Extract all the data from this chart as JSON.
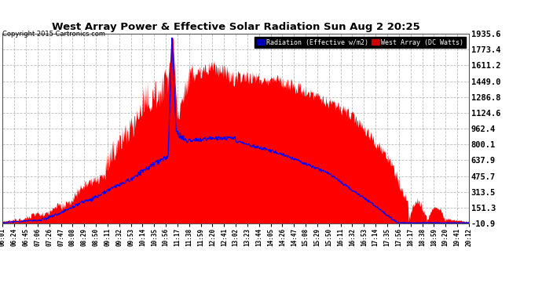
{
  "title": "West Array Power & Effective Solar Radiation Sun Aug 2 20:25",
  "copyright": "Copyright 2015 Cartronics.com",
  "legend_radiation": "Radiation (Effective w/m2)",
  "legend_west": "West Array (DC Watts)",
  "y_ticks": [
    -10.9,
    151.3,
    313.5,
    475.7,
    637.9,
    800.1,
    962.4,
    1124.6,
    1286.8,
    1449.0,
    1611.2,
    1773.4,
    1935.6
  ],
  "ylim": [
    -10.9,
    1935.6
  ],
  "bg_color": "#ffffff",
  "plot_bg_color": "#ffffff",
  "grid_color": "#aaaaaa",
  "red_fill_color": "#ff0000",
  "blue_line_color": "#0000ff",
  "title_color": "#000000",
  "x_tick_labels": [
    "06:01",
    "06:24",
    "06:45",
    "07:06",
    "07:26",
    "07:47",
    "08:08",
    "08:29",
    "08:50",
    "09:11",
    "09:32",
    "09:53",
    "10:14",
    "10:35",
    "10:56",
    "11:17",
    "11:38",
    "11:59",
    "12:20",
    "12:41",
    "13:02",
    "13:23",
    "13:44",
    "14:05",
    "14:26",
    "14:47",
    "15:08",
    "15:29",
    "15:50",
    "16:11",
    "16:32",
    "16:53",
    "17:14",
    "17:35",
    "17:56",
    "18:17",
    "18:38",
    "18:59",
    "19:20",
    "19:41",
    "20:12"
  ]
}
